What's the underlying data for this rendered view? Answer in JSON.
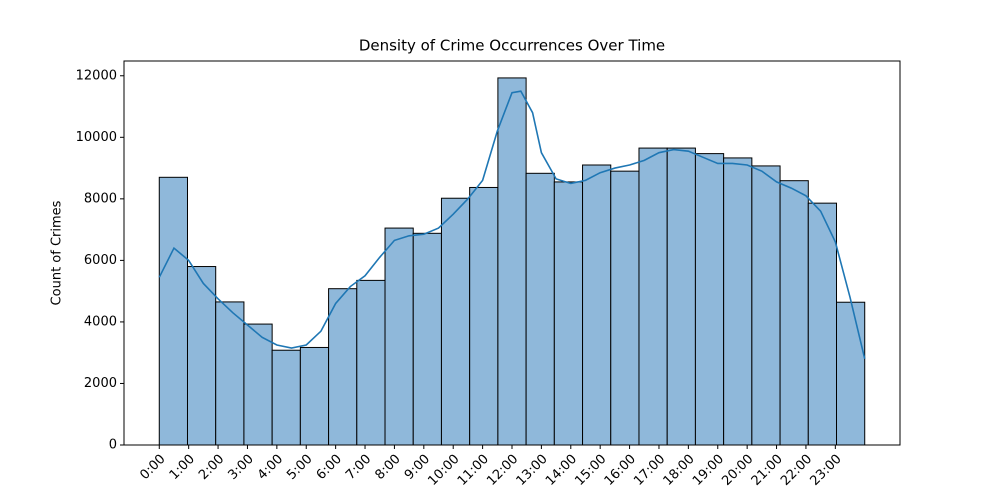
{
  "chart_data": {
    "type": "histogram",
    "title": "Density of Crime Occurrences Over Time",
    "y_label": "Count of Crimes",
    "bins": [
      0,
      0.96,
      1.92,
      2.88,
      3.84,
      4.8,
      5.76,
      6.72,
      7.68,
      8.64,
      9.6,
      10.56,
      11.52,
      12.48,
      13.44,
      14.4,
      15.36,
      16.32,
      17.28,
      18.24,
      19.2,
      20.16,
      21.12,
      22.08,
      23.04,
      24
    ],
    "values": [
      8700,
      5800,
      4650,
      3930,
      3080,
      3170,
      5080,
      5350,
      7050,
      6880,
      8020,
      8370,
      11930,
      8830,
      8550,
      9100,
      8900,
      9650,
      9650,
      9470,
      9330,
      9070,
      8590,
      7860,
      4640
    ],
    "color": "#8fb8da",
    "edge_color": "#000000",
    "kde": {
      "color": "#1f77b4",
      "x": [
        0,
        0.5,
        1,
        1.5,
        2,
        2.5,
        3,
        3.5,
        4,
        4.5,
        5,
        5.5,
        6,
        6.5,
        7,
        7.5,
        8,
        8.5,
        9,
        9.5,
        10,
        10.5,
        11,
        11.5,
        12,
        12.3,
        12.7,
        13,
        13.5,
        14,
        14.5,
        15,
        15.5,
        16,
        16.5,
        17,
        17.5,
        18,
        18.5,
        19,
        19.5,
        20,
        20.5,
        21,
        21.5,
        22,
        22.5,
        23,
        23.5,
        24
      ],
      "values": [
        5450,
        6400,
        6000,
        5250,
        4750,
        4300,
        3900,
        3500,
        3250,
        3150,
        3250,
        3700,
        4600,
        5150,
        5500,
        6100,
        6650,
        6800,
        6850,
        7050,
        7500,
        8000,
        8600,
        10200,
        11450,
        11500,
        10800,
        9500,
        8650,
        8500,
        8600,
        8850,
        9000,
        9100,
        9250,
        9500,
        9600,
        9550,
        9350,
        9150,
        9150,
        9100,
        8900,
        8550,
        8350,
        8100,
        7600,
        6600,
        4800,
        2800
      ]
    },
    "xlim": [
      -1.2,
      25.2
    ],
    "xticks": [
      {
        "value": 0,
        "label": "0:00"
      },
      {
        "value": 1,
        "label": "1:00"
      },
      {
        "value": 2,
        "label": "2:00"
      },
      {
        "value": 3,
        "label": "3:00"
      },
      {
        "value": 4,
        "label": "4:00"
      },
      {
        "value": 5,
        "label": "5:00"
      },
      {
        "value": 6,
        "label": "6:00"
      },
      {
        "value": 7,
        "label": "7:00"
      },
      {
        "value": 8,
        "label": "8:00"
      },
      {
        "value": 9,
        "label": "9:00"
      },
      {
        "value": 10,
        "label": "10:00"
      },
      {
        "value": 11,
        "label": "11:00"
      },
      {
        "value": 12,
        "label": "12:00"
      },
      {
        "value": 13,
        "label": "13:00"
      },
      {
        "value": 14,
        "label": "14:00"
      },
      {
        "value": 15,
        "label": "15:00"
      },
      {
        "value": 16,
        "label": "16:00"
      },
      {
        "value": 17,
        "label": "17:00"
      },
      {
        "value": 18,
        "label": "18:00"
      },
      {
        "value": 19,
        "label": "19:00"
      },
      {
        "value": 20,
        "label": "20:00"
      },
      {
        "value": 21,
        "label": "21:00"
      },
      {
        "value": 22,
        "label": "22:00"
      },
      {
        "value": 23,
        "label": "23:00"
      }
    ],
    "ylim": [
      0,
      12480
    ],
    "yticks": [
      0,
      2000,
      4000,
      6000,
      8000,
      10000,
      12000
    ],
    "grid": false
  }
}
